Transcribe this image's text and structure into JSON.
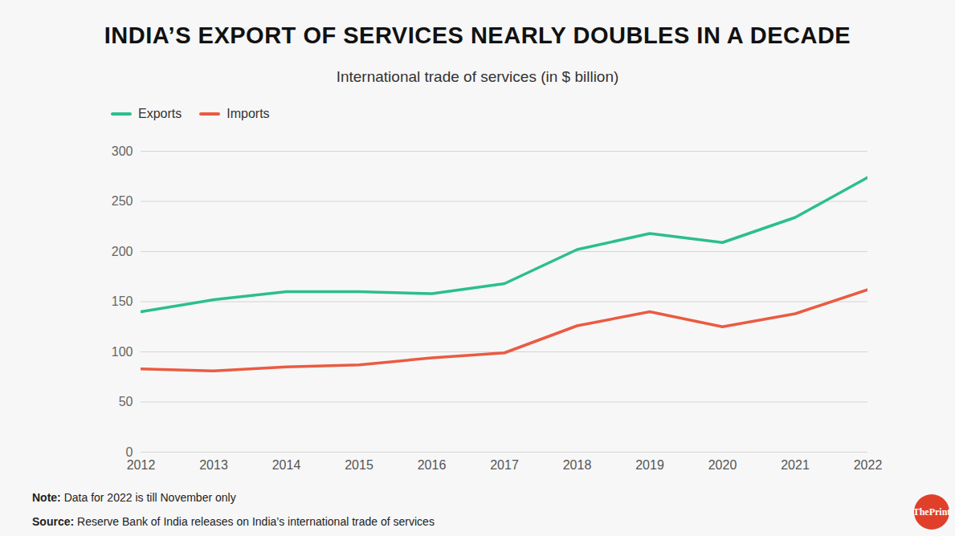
{
  "chart_data": {
    "type": "line",
    "title": "INDIA’S EXPORT OF SERVICES NEARLY DOUBLES IN A DECADE",
    "subtitle": "International trade of services (in $ billion)",
    "x": [
      2012,
      2013,
      2014,
      2015,
      2016,
      2017,
      2018,
      2019,
      2020,
      2021,
      2022
    ],
    "series": [
      {
        "name": "Exports",
        "color": "#2bbf8a",
        "values": [
          140,
          152,
          160,
          160,
          158,
          168,
          202,
          218,
          209,
          234,
          274
        ]
      },
      {
        "name": "Imports",
        "color": "#ea5b42",
        "values": [
          83,
          81,
          85,
          87,
          94,
          99,
          126,
          140,
          125,
          138,
          162
        ]
      }
    ],
    "xlim": [
      2012,
      2022
    ],
    "xticks": [
      2012,
      2013,
      2014,
      2015,
      2016,
      2017,
      2018,
      2019,
      2020,
      2021,
      2022
    ],
    "ylim": [
      0,
      300
    ],
    "yticks": [
      0,
      50,
      100,
      150,
      200,
      250,
      300
    ],
    "grid": true,
    "legend": "top-left",
    "annotations": [
      {
        "label": "Note:",
        "text": "Data for 2022 is till November only"
      },
      {
        "label": "Source:",
        "text": "Reserve Bank of India releases on India’s international trade of services"
      }
    ],
    "logo": "ThePrint"
  }
}
